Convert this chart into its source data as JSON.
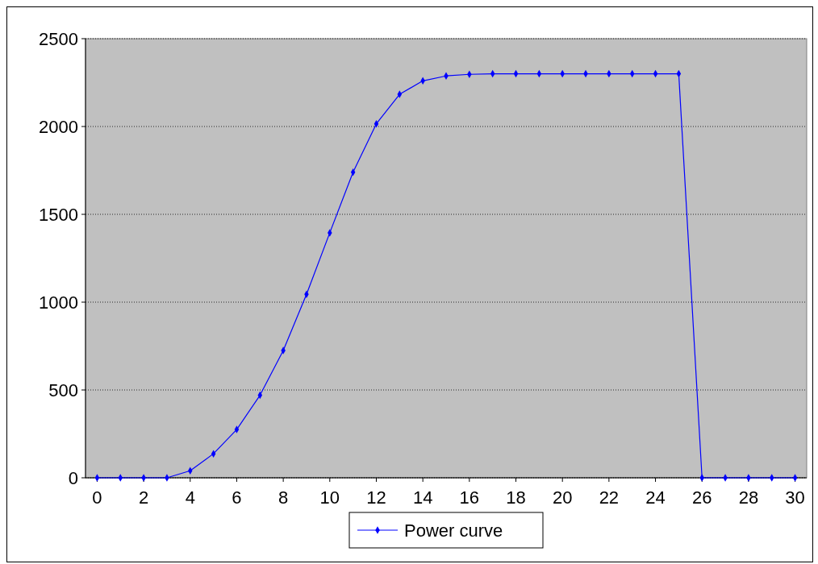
{
  "chart_data": {
    "type": "line",
    "x": [
      0,
      1,
      2,
      3,
      4,
      5,
      6,
      7,
      8,
      9,
      10,
      11,
      12,
      13,
      14,
      15,
      16,
      17,
      18,
      19,
      20,
      21,
      22,
      23,
      24,
      25,
      26,
      27,
      28,
      29,
      30
    ],
    "series": [
      {
        "name": "Power curve",
        "color": "#0000ff",
        "values": [
          0,
          0,
          0,
          0,
          40,
          137,
          275,
          470,
          725,
          1045,
          1395,
          1740,
          2015,
          2183,
          2260,
          2288,
          2297,
          2300,
          2300,
          2300,
          2300,
          2300,
          2300,
          2300,
          2300,
          2300,
          0,
          0,
          0,
          0,
          0
        ]
      }
    ],
    "xlim": [
      -0.5,
      30.5
    ],
    "xticks": [
      0,
      2,
      4,
      6,
      8,
      10,
      12,
      14,
      16,
      18,
      20,
      22,
      24,
      26,
      28,
      30
    ],
    "ylim": [
      0,
      2500
    ],
    "yticks": [
      0,
      500,
      1000,
      1500,
      2000,
      2500
    ],
    "grid": "y",
    "legend": "bottom",
    "marker": "diamond",
    "line_style": "solid"
  }
}
